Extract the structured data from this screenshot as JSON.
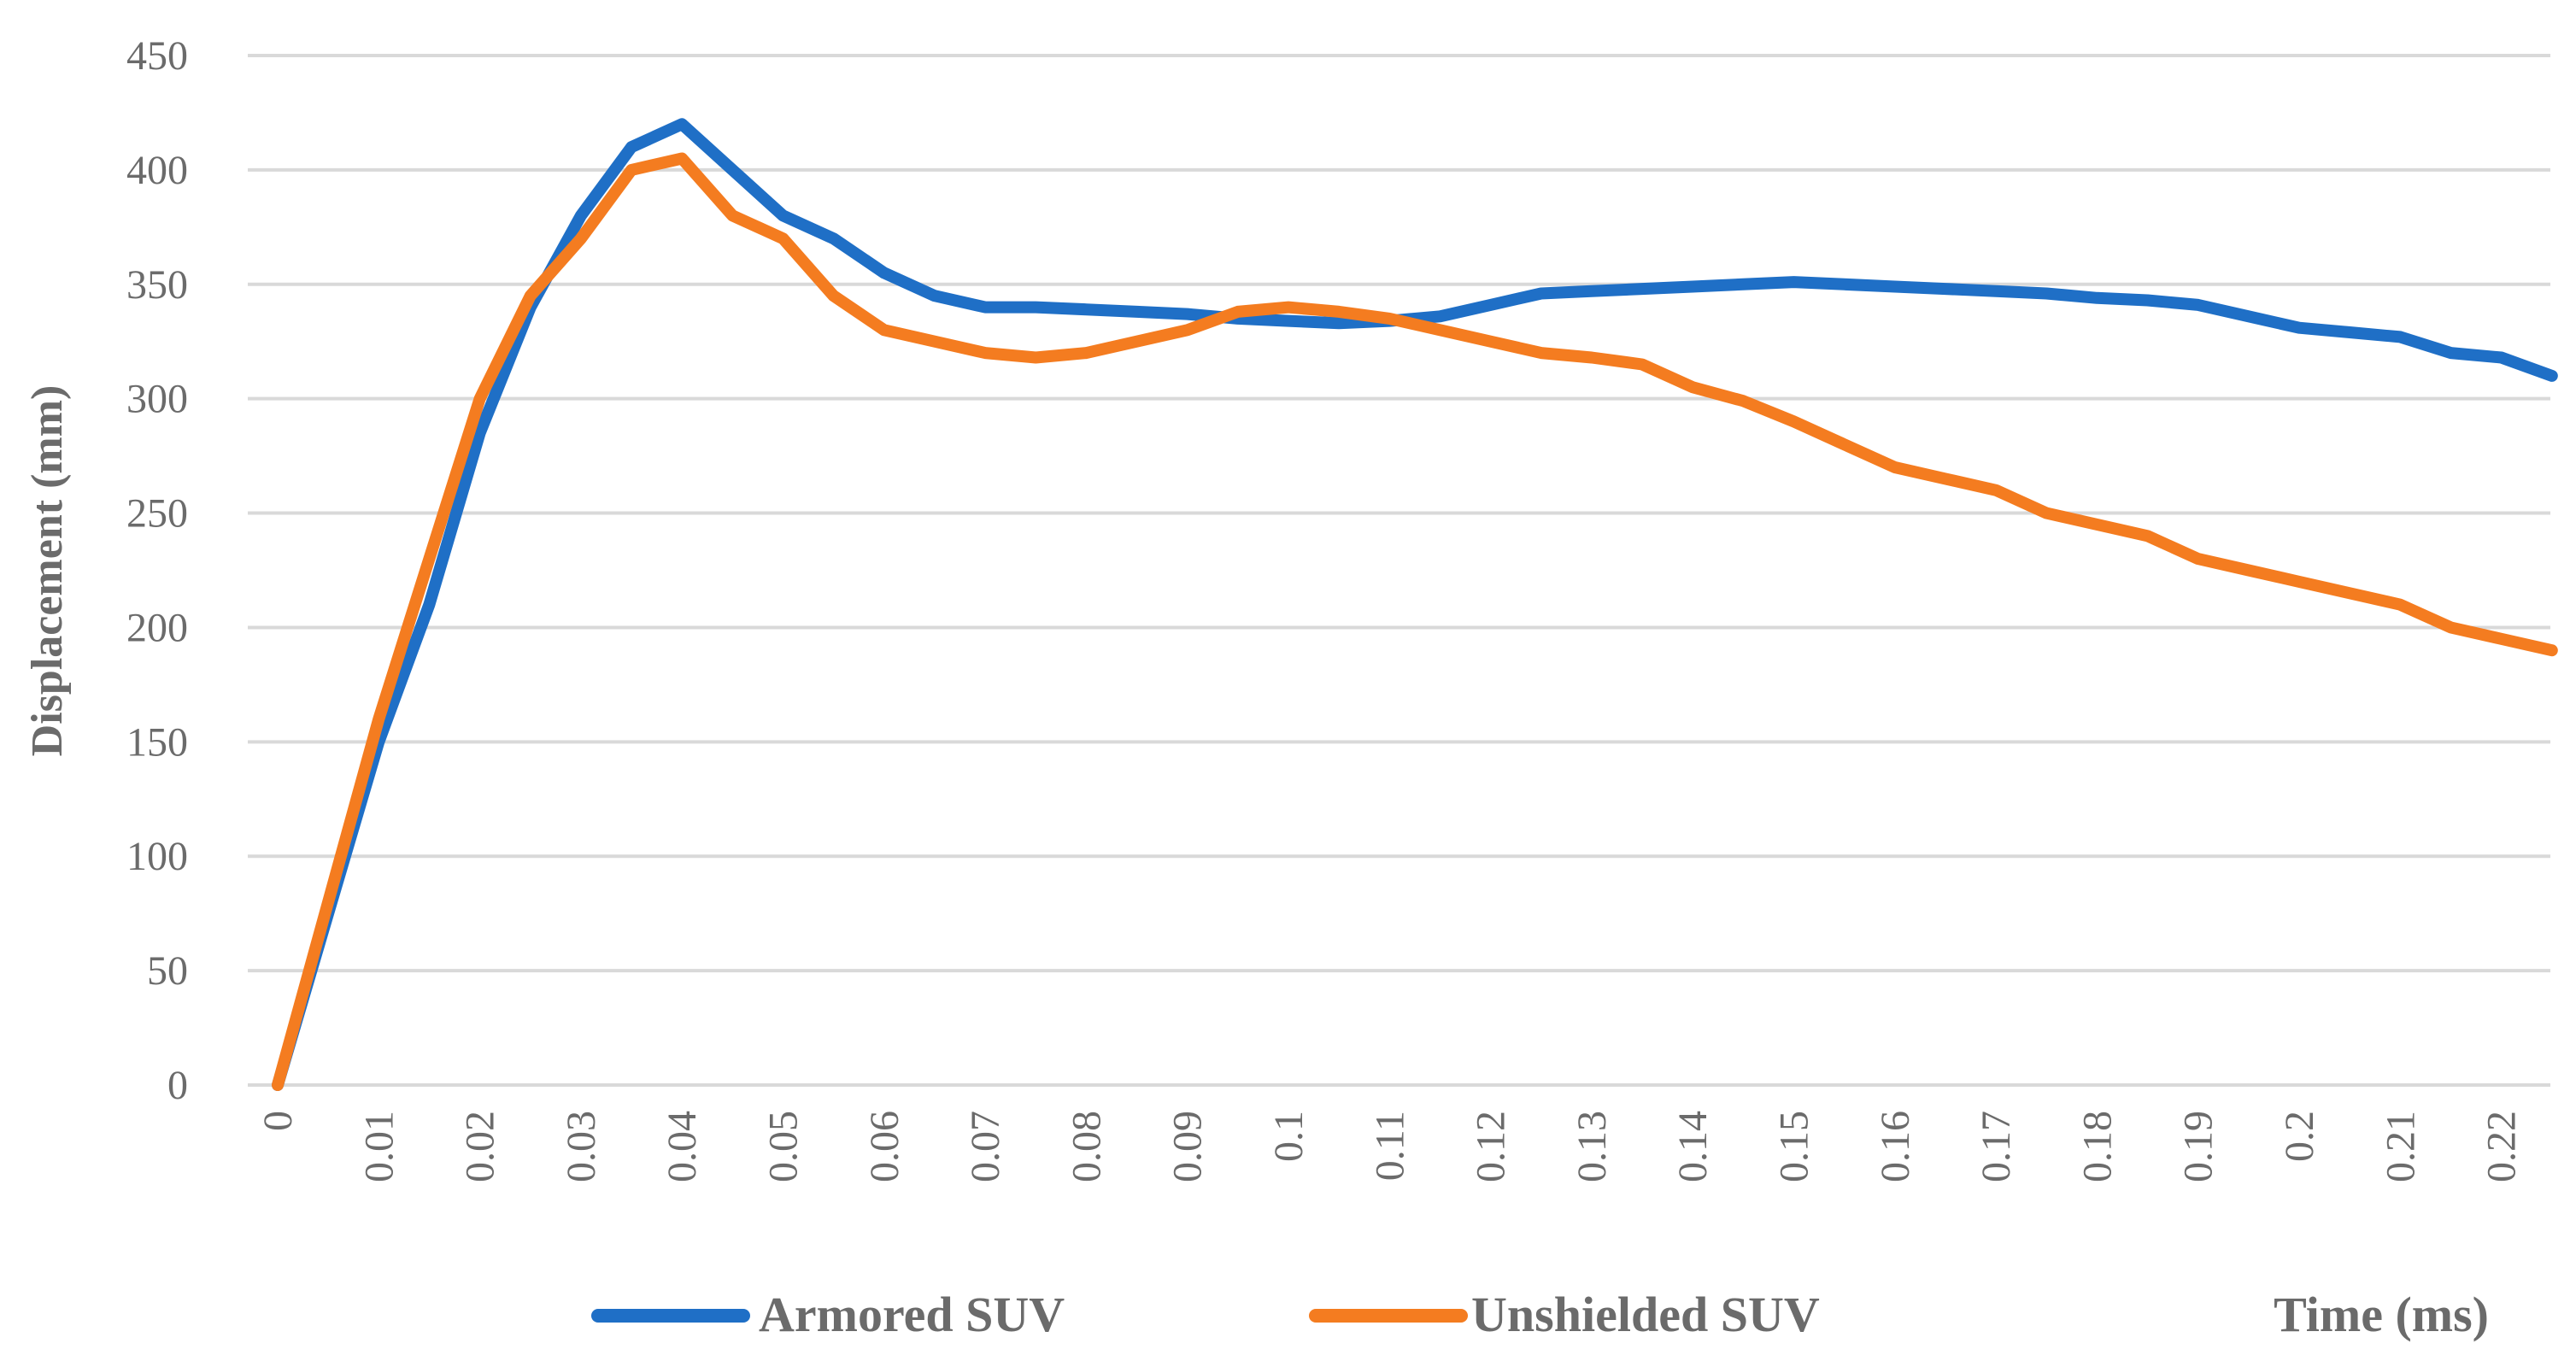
{
  "chart_data": {
    "type": "line",
    "title": "",
    "xlabel": "Time (ms)",
    "ylabel": "Displacement (mm)",
    "ylim": [
      0,
      450
    ],
    "yticks": [
      "0",
      "50",
      "100",
      "150",
      "200",
      "250",
      "300",
      "350",
      "400",
      "450"
    ],
    "grid": true,
    "legend_position": "bottom",
    "x": [
      0,
      0.005,
      0.01,
      0.015,
      0.02,
      0.025,
      0.03,
      0.035,
      0.04,
      0.045,
      0.05,
      0.055,
      0.06,
      0.065,
      0.07,
      0.075,
      0.08,
      0.085,
      0.09,
      0.095,
      0.1,
      0.105,
      0.11,
      0.115,
      0.12,
      0.125,
      0.13,
      0.135,
      0.14,
      0.145,
      0.15,
      0.155,
      0.16,
      0.165,
      0.17,
      0.175,
      0.18,
      0.185,
      0.19,
      0.195,
      0.2,
      0.205,
      0.21,
      0.215,
      0.22,
      0.225
    ],
    "xtick_labels": [
      "0",
      "0.01",
      "0.02",
      "0.03",
      "0.04",
      "0.05",
      "0.06",
      "0.07",
      "0.08",
      "0.09",
      "0.1",
      "0.11",
      "0.12",
      "0.13",
      "0.14",
      "0.15",
      "0.16",
      "0.17",
      "0.18",
      "0.19",
      "0.2",
      "0.21",
      "0.22"
    ],
    "series": [
      {
        "name": "Armored SUV",
        "color": "#1f6fc6",
        "values": [
          0,
          75,
          150,
          210,
          285,
          340,
          380,
          410,
          420,
          400,
          380,
          370,
          355,
          345,
          340,
          340,
          339,
          338,
          337,
          335,
          334,
          333,
          334,
          336,
          341,
          346,
          347,
          348,
          349,
          350,
          351,
          350,
          349,
          348,
          347,
          346,
          344,
          343,
          341,
          336,
          331,
          329,
          327,
          320,
          318,
          310
        ]
      },
      {
        "name": "Unshielded SUV",
        "color": "#f47c20",
        "values": [
          0,
          80,
          160,
          230,
          300,
          345,
          370,
          400,
          405,
          380,
          370,
          345,
          330,
          325,
          320,
          318,
          320,
          325,
          330,
          338,
          340,
          338,
          335,
          330,
          325,
          320,
          318,
          315,
          305,
          299,
          290,
          280,
          270,
          265,
          260,
          250,
          245,
          240,
          230,
          225,
          220,
          215,
          210,
          200,
          195,
          190
        ]
      }
    ]
  }
}
